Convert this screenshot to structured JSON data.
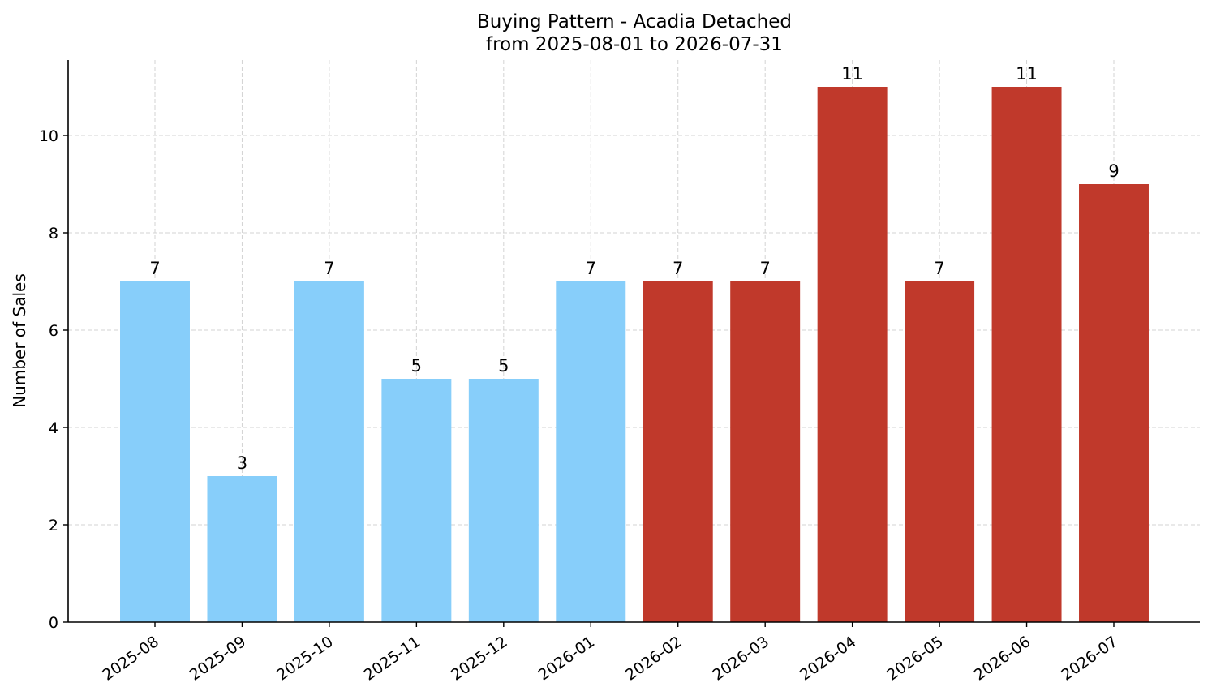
{
  "chart_data": {
    "type": "bar",
    "title": "Buying Pattern - Acadia Detached",
    "subtitle": "from 2025-08-01 to 2026-07-31",
    "xlabel": "",
    "ylabel": "Number of Sales",
    "categories": [
      "2025-08",
      "2025-09",
      "2025-10",
      "2025-11",
      "2025-12",
      "2026-01",
      "2026-02",
      "2026-03",
      "2026-04",
      "2026-05",
      "2026-06",
      "2026-07"
    ],
    "values": [
      7,
      3,
      7,
      5,
      5,
      7,
      7,
      7,
      11,
      7,
      11,
      9
    ],
    "bar_colors": [
      "#87CEFA",
      "#87CEFA",
      "#87CEFA",
      "#87CEFA",
      "#87CEFA",
      "#87CEFA",
      "#C0392B",
      "#C0392B",
      "#C0392B",
      "#C0392B",
      "#C0392B",
      "#C0392B"
    ],
    "ylim": [
      0,
      11.55
    ],
    "yticks": [
      0,
      2,
      4,
      6,
      8,
      10
    ],
    "grid": true,
    "legend": "none"
  }
}
